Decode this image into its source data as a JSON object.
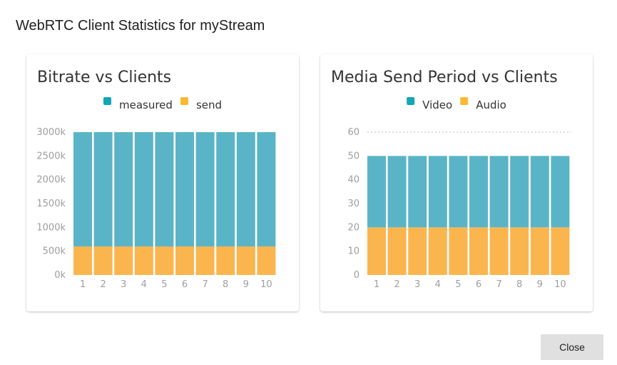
{
  "dialog": {
    "title": "WebRTC Client Statistics for myStream",
    "close_label": "Close"
  },
  "colors": {
    "series_a": "#5ab4c8",
    "series_b": "#fbb54e",
    "legend_a": "#13a5b8",
    "legend_b": "#fbb932"
  },
  "chart_data": [
    {
      "type": "bar",
      "stacked": true,
      "title": "Bitrate vs Clients",
      "categories": [
        "1",
        "2",
        "3",
        "4",
        "5",
        "6",
        "7",
        "8",
        "9",
        "10"
      ],
      "series": [
        {
          "name": "measured",
          "values": [
            2400,
            2400,
            2400,
            2400,
            2400,
            2400,
            2400,
            2400,
            2400,
            2400
          ]
        },
        {
          "name": "send",
          "values": [
            600,
            600,
            600,
            600,
            600,
            600,
            600,
            600,
            600,
            600
          ]
        }
      ],
      "ylim": [
        0,
        3000
      ],
      "yticks": [
        0,
        500,
        1000,
        1500,
        2000,
        2500,
        3000
      ],
      "ytick_labels": [
        "0k",
        "500k",
        "1000k",
        "1500k",
        "2000k",
        "2500k",
        "3000k"
      ],
      "legend_position": "top",
      "grid": false
    },
    {
      "type": "bar",
      "stacked": true,
      "title": "Media Send Period vs Clients",
      "categories": [
        "1",
        "2",
        "3",
        "4",
        "5",
        "6",
        "7",
        "8",
        "9",
        "10"
      ],
      "series": [
        {
          "name": "Video",
          "values": [
            30,
            30,
            30,
            30,
            30,
            30,
            30,
            30,
            30,
            30
          ]
        },
        {
          "name": "Audio",
          "values": [
            20,
            20,
            20,
            20,
            20,
            20,
            20,
            20,
            20,
            20
          ]
        }
      ],
      "ylim": [
        0,
        60
      ],
      "yticks": [
        0,
        10,
        20,
        30,
        40,
        50,
        60
      ],
      "ytick_labels": [
        "0",
        "10",
        "20",
        "30",
        "40",
        "50",
        "60"
      ],
      "legend_position": "top",
      "grid": false,
      "top_gridline": true
    }
  ]
}
